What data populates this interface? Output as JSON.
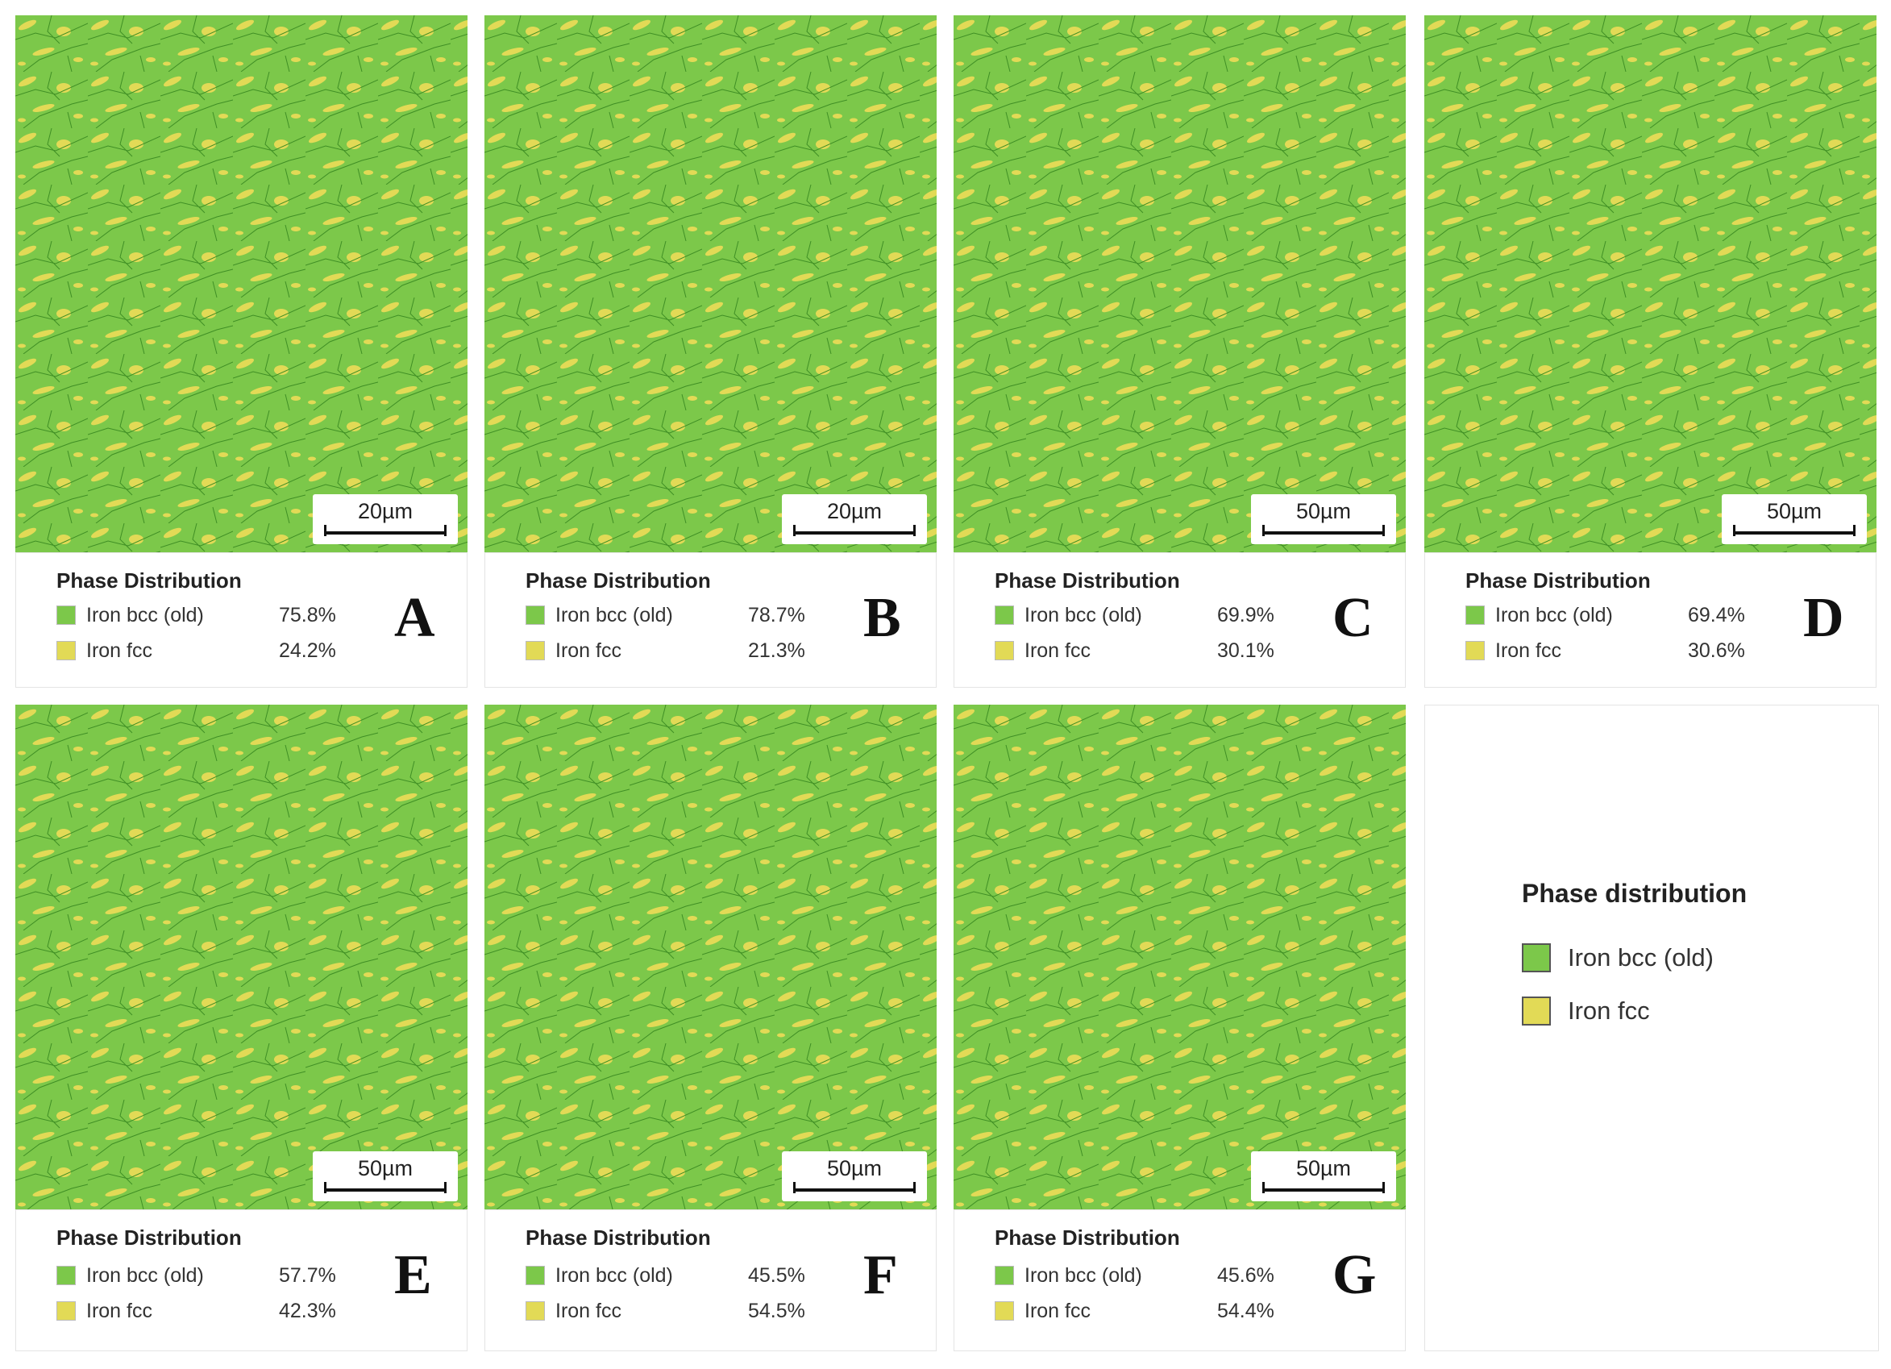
{
  "panels": [
    {
      "letter": "A",
      "scale_bar": "20µm",
      "legend_title": "Phase Distribution",
      "phases": [
        {
          "name": "Iron bcc (old)",
          "share": "75.8%"
        },
        {
          "name": "Iron fcc",
          "share": "24.2%"
        }
      ]
    },
    {
      "letter": "B",
      "scale_bar": "20µm",
      "legend_title": "Phase Distribution",
      "phases": [
        {
          "name": "Iron bcc (old)",
          "share": "78.7%"
        },
        {
          "name": "Iron fcc",
          "share": "21.3%"
        }
      ]
    },
    {
      "letter": "C",
      "scale_bar": "50µm",
      "legend_title": "Phase Distribution",
      "phases": [
        {
          "name": "Iron bcc (old)",
          "share": "69.9%"
        },
        {
          "name": "Iron fcc",
          "share": "30.1%"
        }
      ]
    },
    {
      "letter": "D",
      "scale_bar": "50µm",
      "legend_title": "Phase Distribution",
      "phases": [
        {
          "name": "Iron bcc (old)",
          "share": "69.4%"
        },
        {
          "name": "Iron fcc",
          "share": "30.6%"
        }
      ]
    },
    {
      "letter": "E",
      "scale_bar": "50µm",
      "legend_title": "Phase Distribution",
      "phases": [
        {
          "name": "Iron bcc (old)",
          "share": "57.7%"
        },
        {
          "name": "Iron fcc",
          "share": "42.3%"
        }
      ]
    },
    {
      "letter": "F",
      "scale_bar": "50µm",
      "legend_title": "Phase Distribution",
      "phases": [
        {
          "name": "Iron bcc (old)",
          "share": "45.5%"
        },
        {
          "name": "Iron fcc",
          "share": "54.5%"
        }
      ]
    },
    {
      "letter": "G",
      "scale_bar": "50µm",
      "legend_title": "Phase Distribution",
      "phases": [
        {
          "name": "Iron bcc (old)",
          "share": "45.6%"
        },
        {
          "name": "Iron fcc",
          "share": "54.4%"
        }
      ]
    }
  ],
  "legend": {
    "title": "Phase distribution",
    "items": [
      {
        "name": "Iron bcc (old)",
        "color": "#7cc84a"
      },
      {
        "name": "Iron fcc",
        "color": "#e2da56"
      }
    ]
  }
}
